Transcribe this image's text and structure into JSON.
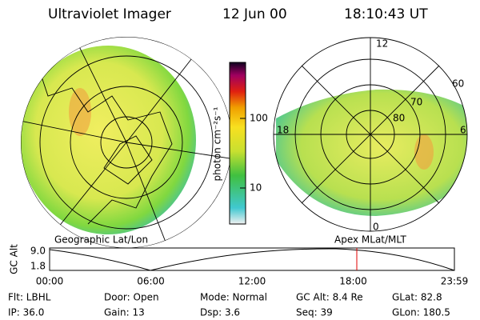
{
  "header": {
    "title": "Ultraviolet Imager",
    "date": "12 Jun 00",
    "time": "18:10:43 UT"
  },
  "colorbar": {
    "label": "photon cm⁻²s⁻¹",
    "ticks": [
      "100",
      "10"
    ]
  },
  "left_panel": {
    "caption": "Geographic Lat/Lon"
  },
  "right_panel": {
    "caption": "Apex MLat/MLT",
    "mlt_labels": [
      "12",
      "18",
      "6",
      "0"
    ],
    "lat_labels": [
      "60",
      "70",
      "80"
    ]
  },
  "timeline": {
    "axis_label": "GC Alt",
    "yticks": [
      "9.0",
      "1.8"
    ],
    "xticks": [
      "00:00",
      "06:00",
      "12:00",
      "18:00",
      "23:59"
    ]
  },
  "info": {
    "rows": [
      [
        "Flt: LBHL",
        "Door: Open",
        "Mode: Normal",
        "GC Alt: 8.4 Re",
        "GLat: 82.8"
      ],
      [
        "IP: 36.0",
        "Gain: 13",
        "Dsp: 3.6",
        "Seq: 39",
        "GLon: 180.5"
      ]
    ]
  }
}
